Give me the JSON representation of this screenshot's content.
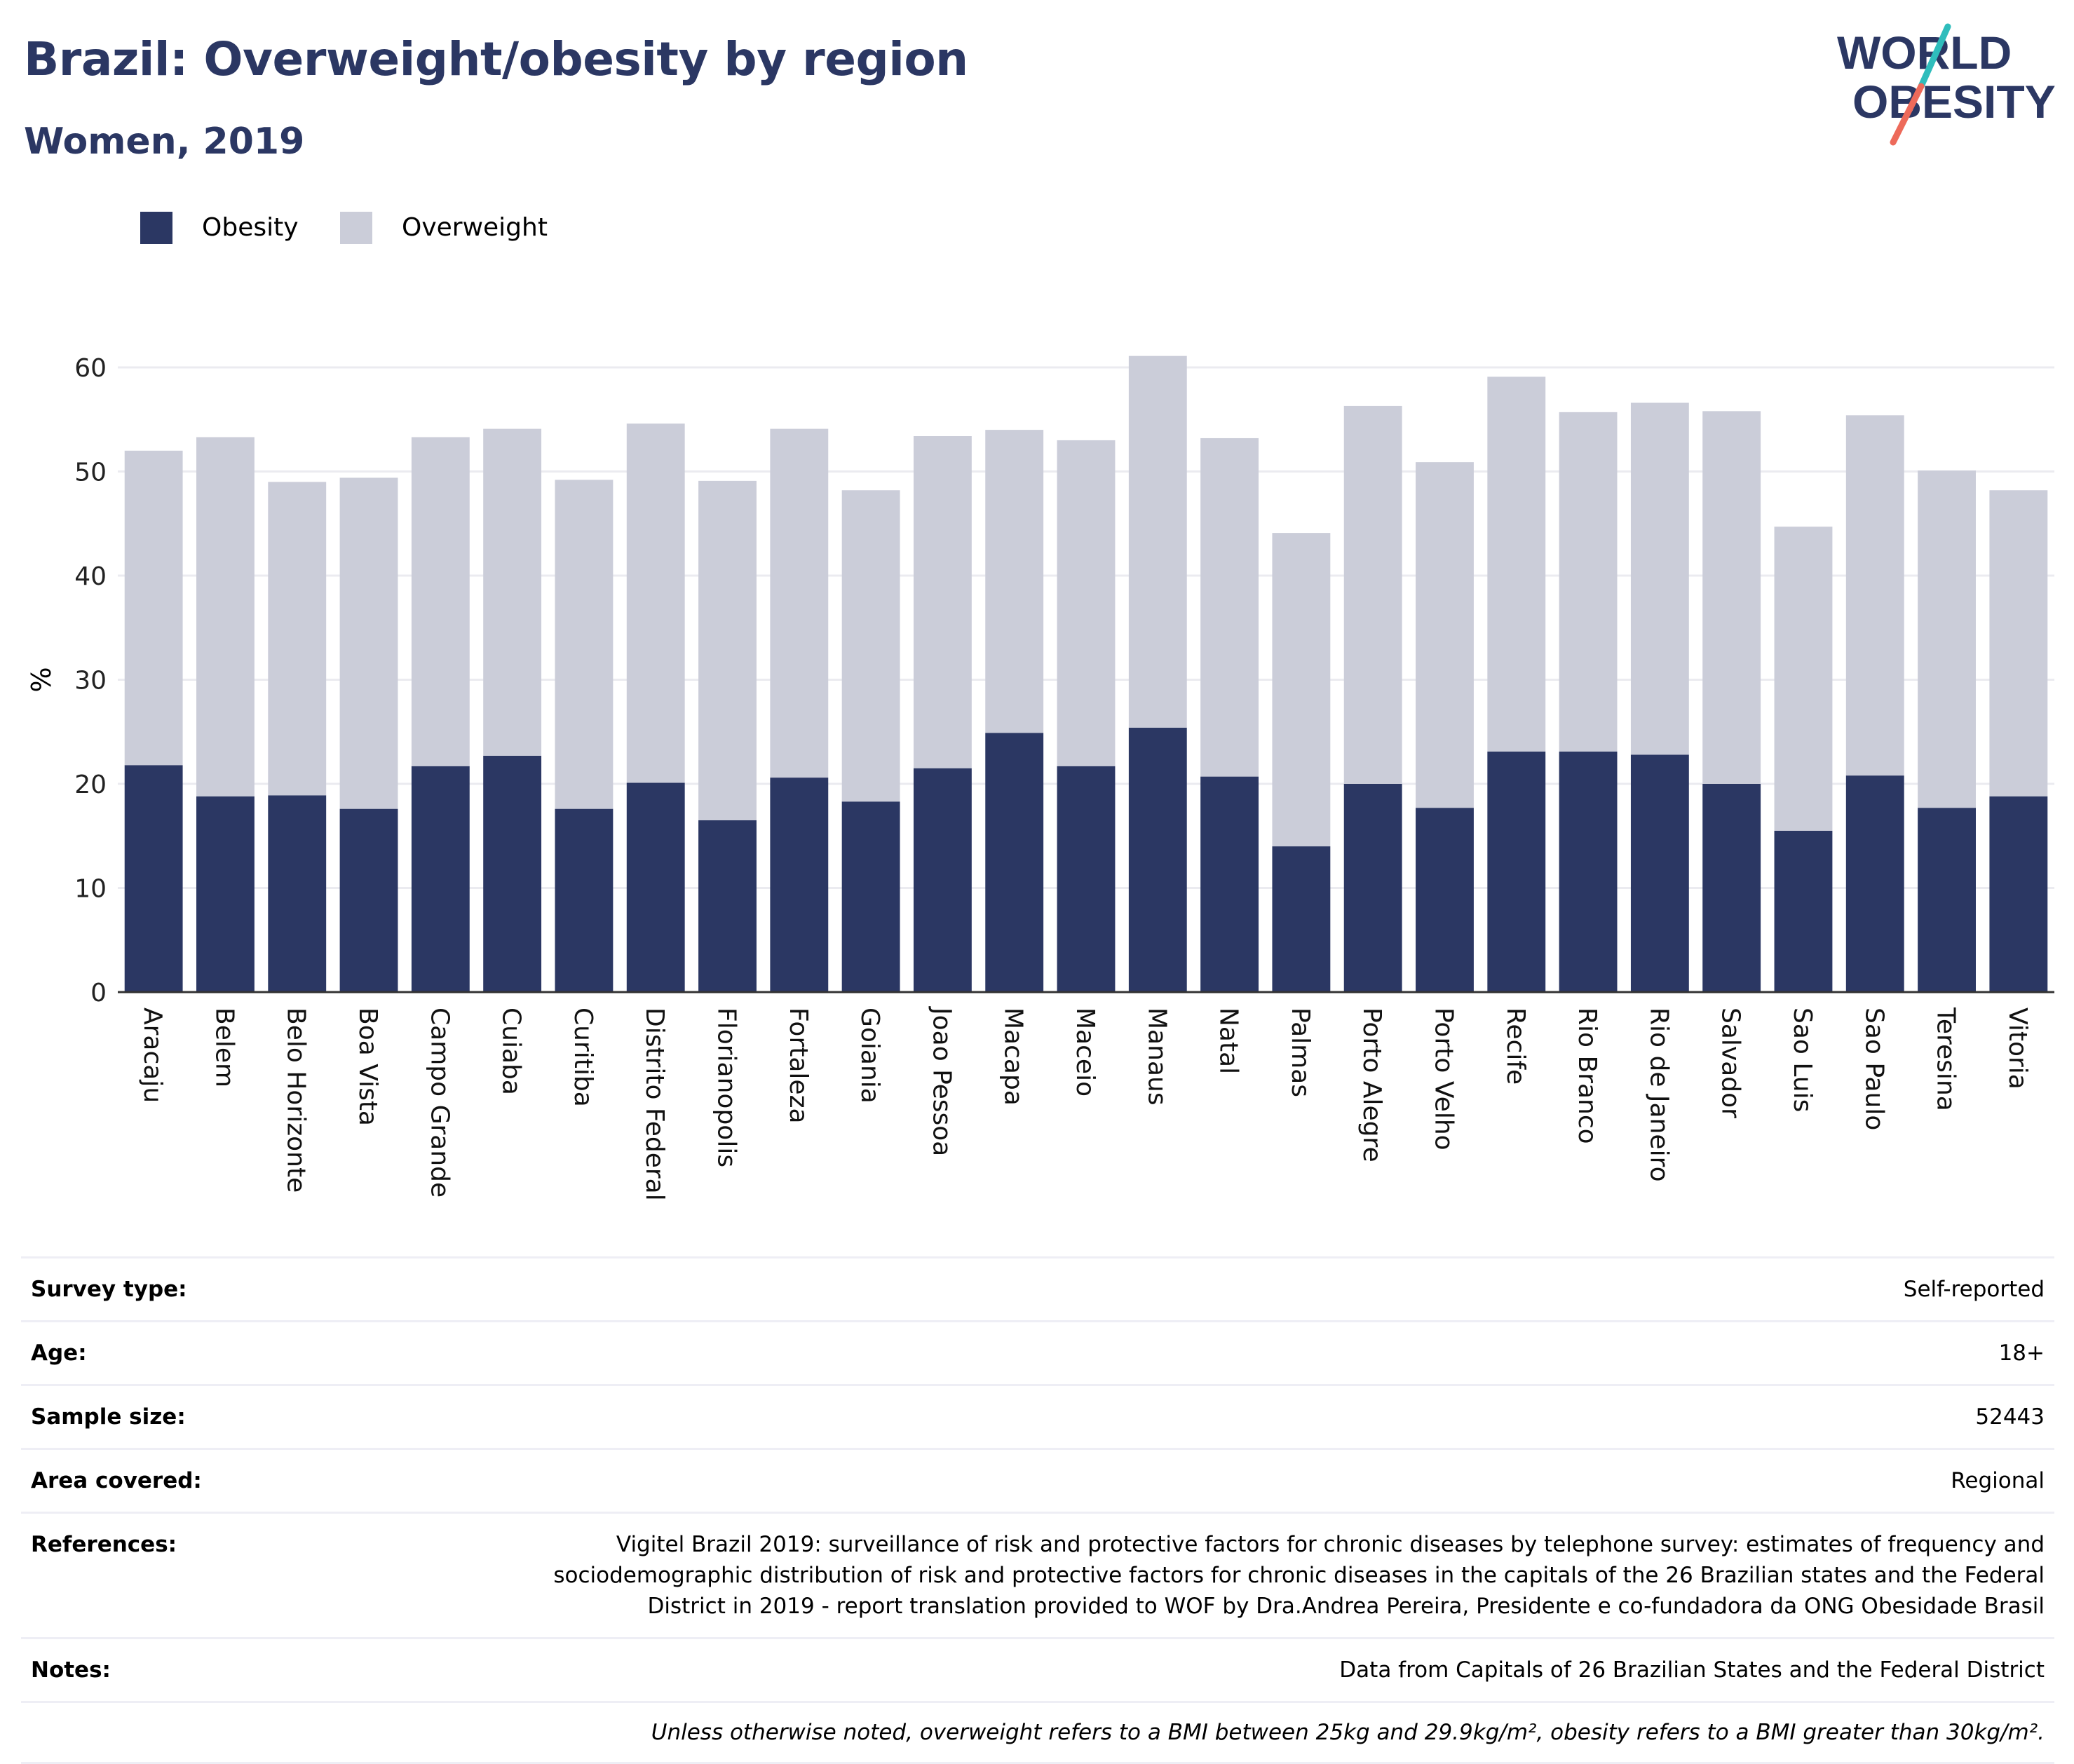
{
  "header": {
    "title": "Brazil: Overweight/obesity by region",
    "subtitle": "Women, 2019"
  },
  "logo": {
    "line1": "WORLD",
    "line2": "OBESITY"
  },
  "legend": [
    {
      "label": "Obesity",
      "color": "#2b3763"
    },
    {
      "label": "Overweight",
      "color": "#cbcdd9"
    }
  ],
  "chart_data": {
    "type": "bar",
    "stacked": true,
    "ylabel": "%",
    "ylim": [
      0,
      62
    ],
    "yticks": [
      0,
      10,
      20,
      30,
      40,
      50,
      60
    ],
    "grid": true,
    "categories": [
      "Aracaju",
      "Belem",
      "Belo Horizonte",
      "Boa Vista",
      "Campo Grande",
      "Cuiaba",
      "Curitiba",
      "Distrito Federal",
      "Florianopolis",
      "Fortaleza",
      "Goiania",
      "Joao Pessoa",
      "Macapa",
      "Maceio",
      "Manaus",
      "Natal",
      "Palmas",
      "Porto Alegre",
      "Porto Velho",
      "Recife",
      "Rio Branco",
      "Rio de Janeiro",
      "Salvador",
      "Sao Luis",
      "Sao Paulo",
      "Teresina",
      "Vitoria"
    ],
    "series": [
      {
        "name": "Obesity",
        "color": "#2b3763",
        "values": [
          21.8,
          18.8,
          18.9,
          17.6,
          21.7,
          22.7,
          17.6,
          20.1,
          16.5,
          20.6,
          18.3,
          21.5,
          24.9,
          21.7,
          25.4,
          20.7,
          14.0,
          20.0,
          17.7,
          23.1,
          23.1,
          22.8,
          20.0,
          15.5,
          20.8,
          17.7,
          18.8
        ]
      },
      {
        "name": "Overweight",
        "color": "#cbcdd9",
        "values": [
          30.2,
          34.5,
          30.1,
          31.8,
          31.6,
          31.4,
          31.6,
          34.5,
          32.6,
          33.5,
          29.9,
          31.9,
          29.1,
          31.3,
          35.7,
          32.5,
          30.1,
          36.3,
          33.2,
          36.0,
          32.6,
          33.8,
          35.8,
          29.2,
          34.6,
          32.4,
          29.4
        ]
      }
    ]
  },
  "meta": {
    "survey_type": {
      "label": "Survey type:",
      "value": "Self-reported"
    },
    "age": {
      "label": "Age:",
      "value": "18+"
    },
    "sample_size": {
      "label": "Sample size:",
      "value": "52443"
    },
    "area": {
      "label": "Area covered:",
      "value": "Regional"
    },
    "references": {
      "label": "References:",
      "value": "Vigitel Brazil 2019: surveillance of risk and protective factors for chronic diseases by telephone survey: estimates of frequency and sociodemographic distribution of risk and protective factors for chronic diseases in the capitals of the 26 Brazilian states and the Federal District in 2019 - report translation provided to WOF by Dra.Andrea Pereira, Presidente e co-fundadora da ONG Obesidade Brasil"
    },
    "notes": {
      "label": "Notes:",
      "value": "Data from Capitals of 26 Brazilian States and the Federal District"
    },
    "footnote": "Unless otherwise noted, overweight refers to a BMI between 25kg and 29.9kg/m², obesity refers to a BMI greater than 30kg/m²."
  }
}
